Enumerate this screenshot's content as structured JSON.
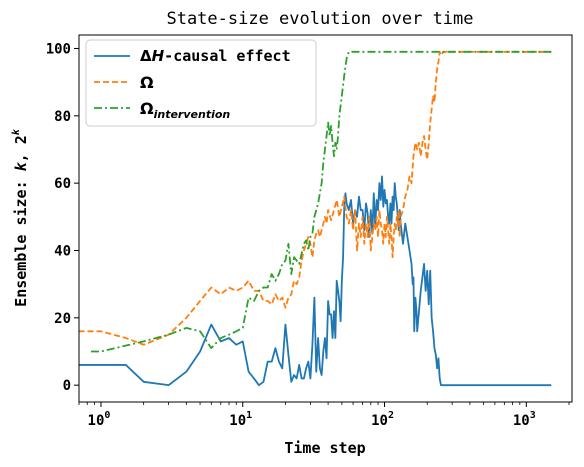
{
  "chart_data": {
    "type": "line",
    "title": "State-size evolution over time",
    "xlabel": "Time step",
    "ylabel_prefix": "Ensemble size: ",
    "ylabel_k": "k",
    "ylabel_sep": ", ",
    "ylabel_two": "2",
    "ylabel_sup": "k",
    "x_scale": "log",
    "xlim": [
      0.7,
      2100
    ],
    "ylim": [
      -5,
      104
    ],
    "x_ticks": [
      {
        "value": 1,
        "base": "10",
        "exp": "0"
      },
      {
        "value": 10,
        "base": "10",
        "exp": "1"
      },
      {
        "value": 100,
        "base": "10",
        "exp": "2"
      },
      {
        "value": 1000,
        "base": "10",
        "exp": "3"
      }
    ],
    "y_ticks": [
      {
        "value": 0,
        "label": "0"
      },
      {
        "value": 20,
        "label": "20"
      },
      {
        "value": 40,
        "label": "40"
      },
      {
        "value": 60,
        "label": "60"
      },
      {
        "value": 80,
        "label": "80"
      },
      {
        "value": 100,
        "label": "100"
      }
    ],
    "grid": false,
    "legend_position": "top-left",
    "series": [
      {
        "name": "ΔH-causal effect",
        "legend_delta": "Δ",
        "legend_h": "H",
        "legend_rest": "-causal effect",
        "color": "#1f77b4",
        "style": "solid",
        "points": [
          [
            0.6,
            6
          ],
          [
            1,
            6
          ],
          [
            1.5,
            6
          ],
          [
            2,
            1
          ],
          [
            3,
            0
          ],
          [
            4,
            4
          ],
          [
            5,
            10
          ],
          [
            6,
            18
          ],
          [
            7,
            13
          ],
          [
            8,
            14
          ],
          [
            9,
            12
          ],
          [
            10,
            13
          ],
          [
            11,
            4
          ],
          [
            12,
            2
          ],
          [
            13,
            0
          ],
          [
            14,
            1
          ],
          [
            15,
            7
          ],
          [
            16,
            7
          ],
          [
            17,
            11
          ],
          [
            18,
            7
          ],
          [
            19,
            5
          ],
          [
            20,
            18
          ],
          [
            21,
            9
          ],
          [
            22,
            1
          ],
          [
            23,
            3
          ],
          [
            24,
            2
          ],
          [
            25,
            6
          ],
          [
            26,
            2
          ],
          [
            27,
            2
          ],
          [
            28,
            5
          ],
          [
            29,
            7
          ],
          [
            30,
            2
          ],
          [
            31,
            12
          ],
          [
            32,
            26
          ],
          [
            33,
            4
          ],
          [
            34,
            14
          ],
          [
            35,
            5
          ],
          [
            36,
            3
          ],
          [
            37,
            10
          ],
          [
            38,
            14
          ],
          [
            39,
            8
          ],
          [
            40,
            25
          ],
          [
            41,
            21
          ],
          [
            42,
            21
          ],
          [
            43,
            14
          ],
          [
            44,
            22
          ],
          [
            45,
            14
          ],
          [
            46,
            31
          ],
          [
            47,
            28
          ],
          [
            48,
            25
          ],
          [
            49,
            19
          ],
          [
            50,
            31
          ],
          [
            51,
            38
          ],
          [
            52,
            53
          ],
          [
            53,
            57
          ],
          [
            54,
            54
          ],
          [
            55,
            53
          ],
          [
            56,
            52
          ],
          [
            58,
            55
          ],
          [
            60,
            48
          ],
          [
            62,
            52
          ],
          [
            64,
            50
          ],
          [
            66,
            56
          ],
          [
            68,
            52
          ],
          [
            70,
            52
          ],
          [
            72,
            46
          ],
          [
            74,
            54
          ],
          [
            76,
            51
          ],
          [
            78,
            44
          ],
          [
            80,
            52
          ],
          [
            82,
            45
          ],
          [
            84,
            57
          ],
          [
            86,
            47
          ],
          [
            88,
            55
          ],
          [
            90,
            52
          ],
          [
            92,
            60
          ],
          [
            94,
            55
          ],
          [
            96,
            62
          ],
          [
            98,
            53
          ],
          [
            100,
            58
          ],
          [
            102,
            54
          ],
          [
            104,
            55
          ],
          [
            106,
            50
          ],
          [
            108,
            48
          ],
          [
            110,
            54
          ],
          [
            112,
            48
          ],
          [
            114,
            56
          ],
          [
            116,
            52
          ],
          [
            118,
            60
          ],
          [
            120,
            56
          ],
          [
            122,
            54
          ],
          [
            124,
            50
          ],
          [
            126,
            46
          ],
          [
            128,
            52
          ],
          [
            130,
            48
          ],
          [
            135,
            42
          ],
          [
            140,
            48
          ],
          [
            145,
            44
          ],
          [
            150,
            40
          ],
          [
            155,
            36
          ],
          [
            158,
            30
          ],
          [
            160,
            32
          ],
          [
            162,
            16
          ],
          [
            165,
            26
          ],
          [
            168,
            22
          ],
          [
            170,
            16
          ],
          [
            175,
            22
          ],
          [
            180,
            28
          ],
          [
            185,
            32
          ],
          [
            190,
            36
          ],
          [
            195,
            28
          ],
          [
            200,
            34
          ],
          [
            205,
            24
          ],
          [
            210,
            34
          ],
          [
            215,
            20
          ],
          [
            220,
            16
          ],
          [
            225,
            11
          ],
          [
            230,
            9
          ],
          [
            235,
            5
          ],
          [
            240,
            8
          ],
          [
            245,
            2
          ],
          [
            250,
            0
          ],
          [
            300,
            0
          ],
          [
            500,
            0
          ],
          [
            800,
            0
          ],
          [
            1500,
            0
          ]
        ]
      },
      {
        "name": "Ω",
        "color": "#ff7f0e",
        "style": "dashed",
        "points": [
          [
            0.6,
            16
          ],
          [
            1,
            16
          ],
          [
            1.5,
            14
          ],
          [
            2,
            12
          ],
          [
            3,
            15
          ],
          [
            4,
            20
          ],
          [
            5,
            25
          ],
          [
            6,
            29
          ],
          [
            7,
            27
          ],
          [
            8,
            29
          ],
          [
            9,
            28
          ],
          [
            10,
            29
          ],
          [
            11,
            31
          ],
          [
            12,
            28
          ],
          [
            13,
            28
          ],
          [
            14,
            25
          ],
          [
            15,
            25
          ],
          [
            16,
            24
          ],
          [
            17,
            27
          ],
          [
            18,
            25
          ],
          [
            19,
            26
          ],
          [
            20,
            23
          ],
          [
            21,
            26
          ],
          [
            22,
            27
          ],
          [
            23,
            31
          ],
          [
            24,
            30
          ],
          [
            25,
            32
          ],
          [
            26,
            37
          ],
          [
            27,
            40
          ],
          [
            28,
            42
          ],
          [
            29,
            44
          ],
          [
            30,
            42
          ],
          [
            31,
            38
          ],
          [
            32,
            43
          ],
          [
            33,
            45
          ],
          [
            34,
            46
          ],
          [
            35,
            44
          ],
          [
            36,
            46
          ],
          [
            37,
            48
          ],
          [
            38,
            50
          ],
          [
            39,
            48
          ],
          [
            40,
            52
          ],
          [
            42,
            49
          ],
          [
            44,
            52
          ],
          [
            46,
            55
          ],
          [
            48,
            50
          ],
          [
            50,
            53
          ],
          [
            52,
            56
          ],
          [
            54,
            50
          ],
          [
            56,
            48
          ],
          [
            58,
            52
          ],
          [
            60,
            46
          ],
          [
            62,
            52
          ],
          [
            64,
            40
          ],
          [
            66,
            48
          ],
          [
            68,
            44
          ],
          [
            70,
            50
          ],
          [
            72,
            42
          ],
          [
            74,
            48
          ],
          [
            76,
            44
          ],
          [
            78,
            50
          ],
          [
            80,
            40
          ],
          [
            82,
            44
          ],
          [
            84,
            48
          ],
          [
            86,
            46
          ],
          [
            88,
            50
          ],
          [
            90,
            44
          ],
          [
            92,
            52
          ],
          [
            94,
            48
          ],
          [
            96,
            46
          ],
          [
            98,
            42
          ],
          [
            100,
            48
          ],
          [
            102,
            44
          ],
          [
            104,
            50
          ],
          [
            106,
            46
          ],
          [
            108,
            42
          ],
          [
            110,
            48
          ],
          [
            112,
            44
          ],
          [
            114,
            38
          ],
          [
            116,
            44
          ],
          [
            118,
            48
          ],
          [
            120,
            46
          ],
          [
            122,
            50
          ],
          [
            124,
            48
          ],
          [
            126,
            52
          ],
          [
            128,
            44
          ],
          [
            130,
            50
          ],
          [
            135,
            52
          ],
          [
            140,
            56
          ],
          [
            145,
            58
          ],
          [
            150,
            62
          ],
          [
            155,
            60
          ],
          [
            160,
            68
          ],
          [
            165,
            72
          ],
          [
            170,
            70
          ],
          [
            175,
            72
          ],
          [
            180,
            68
          ],
          [
            185,
            72
          ],
          [
            190,
            74
          ],
          [
            195,
            70
          ],
          [
            200,
            67
          ],
          [
            205,
            72
          ],
          [
            210,
            78
          ],
          [
            215,
            82
          ],
          [
            220,
            86
          ],
          [
            225,
            84
          ],
          [
            230,
            90
          ],
          [
            235,
            94
          ],
          [
            240,
            96
          ],
          [
            245,
            99
          ],
          [
            250,
            98
          ],
          [
            260,
            99
          ],
          [
            300,
            99
          ],
          [
            500,
            99
          ],
          [
            800,
            99
          ],
          [
            1500,
            99
          ]
        ]
      },
      {
        "name": "Ω_intervention",
        "legend_sub": "intervention",
        "color": "#2ca02c",
        "style": "dashdot",
        "points": [
          [
            0.85,
            10
          ],
          [
            1,
            10
          ],
          [
            2,
            13
          ],
          [
            3,
            15
          ],
          [
            4,
            17
          ],
          [
            5,
            16
          ],
          [
            6,
            11
          ],
          [
            7,
            14
          ],
          [
            8,
            15
          ],
          [
            9,
            16
          ],
          [
            10,
            17
          ],
          [
            11,
            26
          ],
          [
            12,
            25
          ],
          [
            13,
            28
          ],
          [
            14,
            29
          ],
          [
            15,
            29
          ],
          [
            16,
            33
          ],
          [
            17,
            31
          ],
          [
            18,
            33
          ],
          [
            19,
            36
          ],
          [
            20,
            37
          ],
          [
            21,
            42
          ],
          [
            22,
            33
          ],
          [
            23,
            38
          ],
          [
            24,
            37
          ],
          [
            25,
            36
          ],
          [
            26,
            39
          ],
          [
            27,
            42
          ],
          [
            28,
            43
          ],
          [
            29,
            40
          ],
          [
            30,
            44
          ],
          [
            31,
            45
          ],
          [
            32,
            50
          ],
          [
            33,
            52
          ],
          [
            34,
            54
          ],
          [
            35,
            57
          ],
          [
            36,
            60
          ],
          [
            37,
            66
          ],
          [
            38,
            70
          ],
          [
            39,
            74
          ],
          [
            40,
            78
          ],
          [
            41,
            74
          ],
          [
            42,
            77
          ],
          [
            43,
            72
          ],
          [
            44,
            68
          ],
          [
            45,
            72
          ],
          [
            46,
            70
          ],
          [
            47,
            74
          ],
          [
            48,
            80
          ],
          [
            50,
            86
          ],
          [
            52,
            92
          ],
          [
            54,
            97
          ],
          [
            56,
            99
          ],
          [
            60,
            99
          ],
          [
            100,
            99
          ],
          [
            300,
            99
          ],
          [
            800,
            99
          ],
          [
            1500,
            99
          ]
        ]
      }
    ]
  }
}
